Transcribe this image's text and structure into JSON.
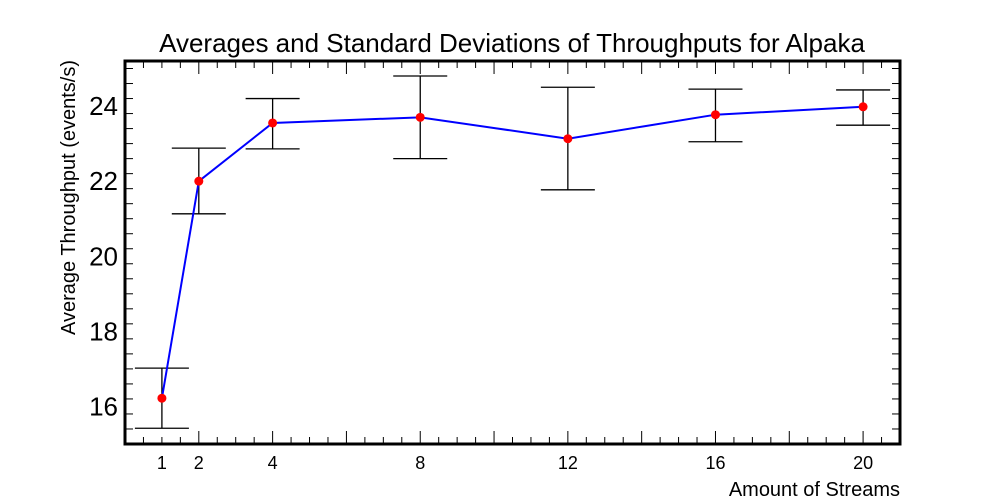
{
  "chart_data": {
    "type": "line",
    "title": "Averages and Standard Deviations of Throughputs for Alpaka",
    "xlabel": "Amount of Streams",
    "ylabel": "Average Throughput (events/s)",
    "xlim": [
      0,
      21
    ],
    "ylim": [
      15,
      25.2
    ],
    "x_ticks": [
      1,
      2,
      4,
      8,
      12,
      16,
      20
    ],
    "y_ticks": [
      16,
      18,
      20,
      22,
      24
    ],
    "grid": false,
    "series": [
      {
        "x": [
          1,
          2,
          4,
          8,
          12,
          16,
          20
        ],
        "y": [
          16.22,
          22.0,
          23.55,
          23.7,
          23.13,
          23.77,
          23.98
        ],
        "err_low": [
          15.42,
          21.13,
          22.86,
          22.6,
          21.77,
          23.05,
          23.49
        ],
        "err_high": [
          17.02,
          22.88,
          24.2,
          24.8,
          24.5,
          24.45,
          24.43
        ]
      }
    ],
    "colors": {
      "line": "#0000ff",
      "marker": "#ff0000",
      "errorbar": "#000000",
      "axes": "#000000"
    }
  }
}
